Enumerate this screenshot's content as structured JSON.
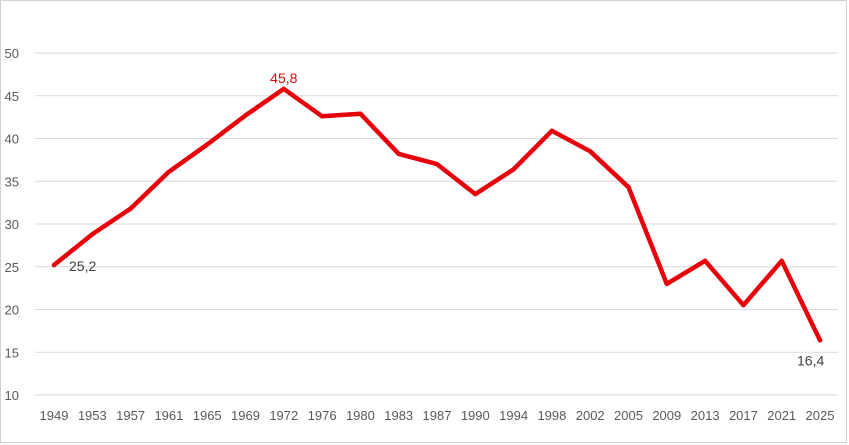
{
  "chart_data": {
    "type": "line",
    "title": "",
    "xlabel": "",
    "ylabel": "",
    "ylim": [
      10,
      50
    ],
    "yticks": [
      10,
      15,
      20,
      25,
      30,
      35,
      40,
      45,
      50
    ],
    "grid": true,
    "legend": "none",
    "x": [
      "1949",
      "1953",
      "1957",
      "1961",
      "1965",
      "1969",
      "1972",
      "1976",
      "1980",
      "1983",
      "1987",
      "1990",
      "1994",
      "1998",
      "2002",
      "2005",
      "2009",
      "2013",
      "2017",
      "2021",
      "2025"
    ],
    "series": [
      {
        "name": "",
        "color": "#e8000b",
        "values": [
          25.2,
          28.8,
          31.8,
          36.1,
          39.3,
          42.7,
          45.8,
          42.6,
          42.9,
          38.2,
          37.0,
          33.5,
          36.4,
          40.9,
          38.5,
          34.3,
          23.0,
          25.7,
          20.5,
          25.7,
          16.4
        ]
      }
    ],
    "annotations": [
      {
        "x": "1949",
        "text": "25,2",
        "color": "#404040",
        "placement": "below-right"
      },
      {
        "x": "1972",
        "text": "45,8",
        "color": "#e8000b",
        "placement": "above"
      },
      {
        "x": "2025",
        "text": "16,4",
        "color": "#404040",
        "placement": "below-left"
      }
    ]
  }
}
